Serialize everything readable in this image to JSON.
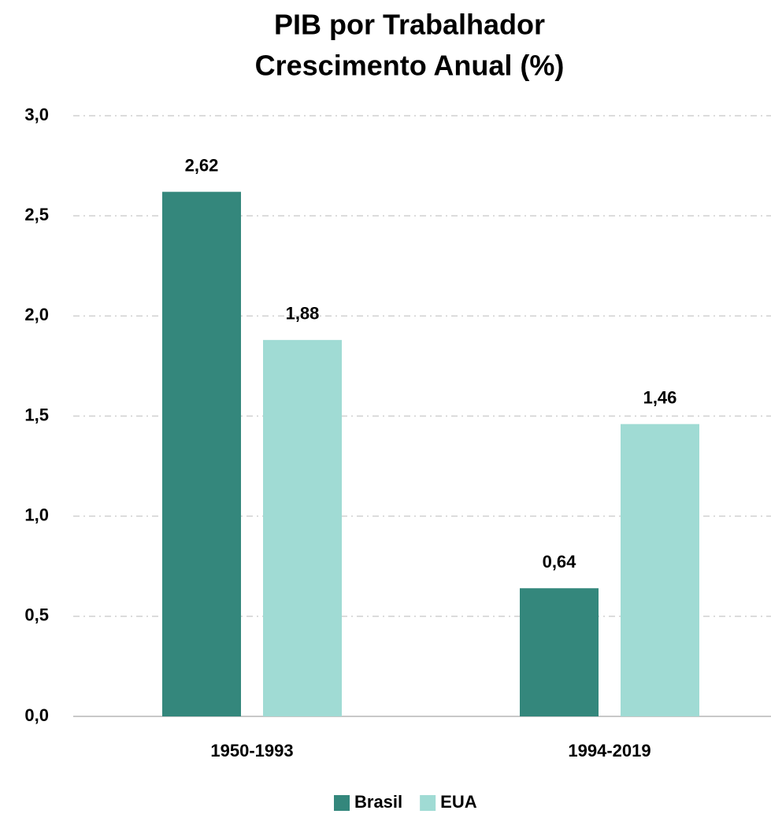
{
  "chart_data": {
    "type": "bar",
    "title": "PIB por Trabalhador",
    "subtitle": "Crescimento Anual (%)",
    "categories": [
      "1950-1993",
      "1994-2019"
    ],
    "series": [
      {
        "name": "Brasil",
        "color": "#34877c",
        "values": [
          2.62,
          0.64
        ],
        "value_labels": [
          "2,62",
          "0,64"
        ]
      },
      {
        "name": "EUA",
        "color": "#a0dbd4",
        "values": [
          1.88,
          1.46
        ],
        "value_labels": [
          "1,88",
          "1,46"
        ]
      }
    ],
    "ylim": [
      0,
      3
    ],
    "yticks": [
      {
        "value": 0,
        "label": "0,0"
      },
      {
        "value": 0.5,
        "label": "0,5"
      },
      {
        "value": 1,
        "label": "1,0"
      },
      {
        "value": 1.5,
        "label": "1,5"
      },
      {
        "value": 2,
        "label": "2,0"
      },
      {
        "value": 2.5,
        "label": "2,5"
      },
      {
        "value": 3,
        "label": "3,0"
      }
    ],
    "grid": true,
    "legend": "bottom"
  }
}
